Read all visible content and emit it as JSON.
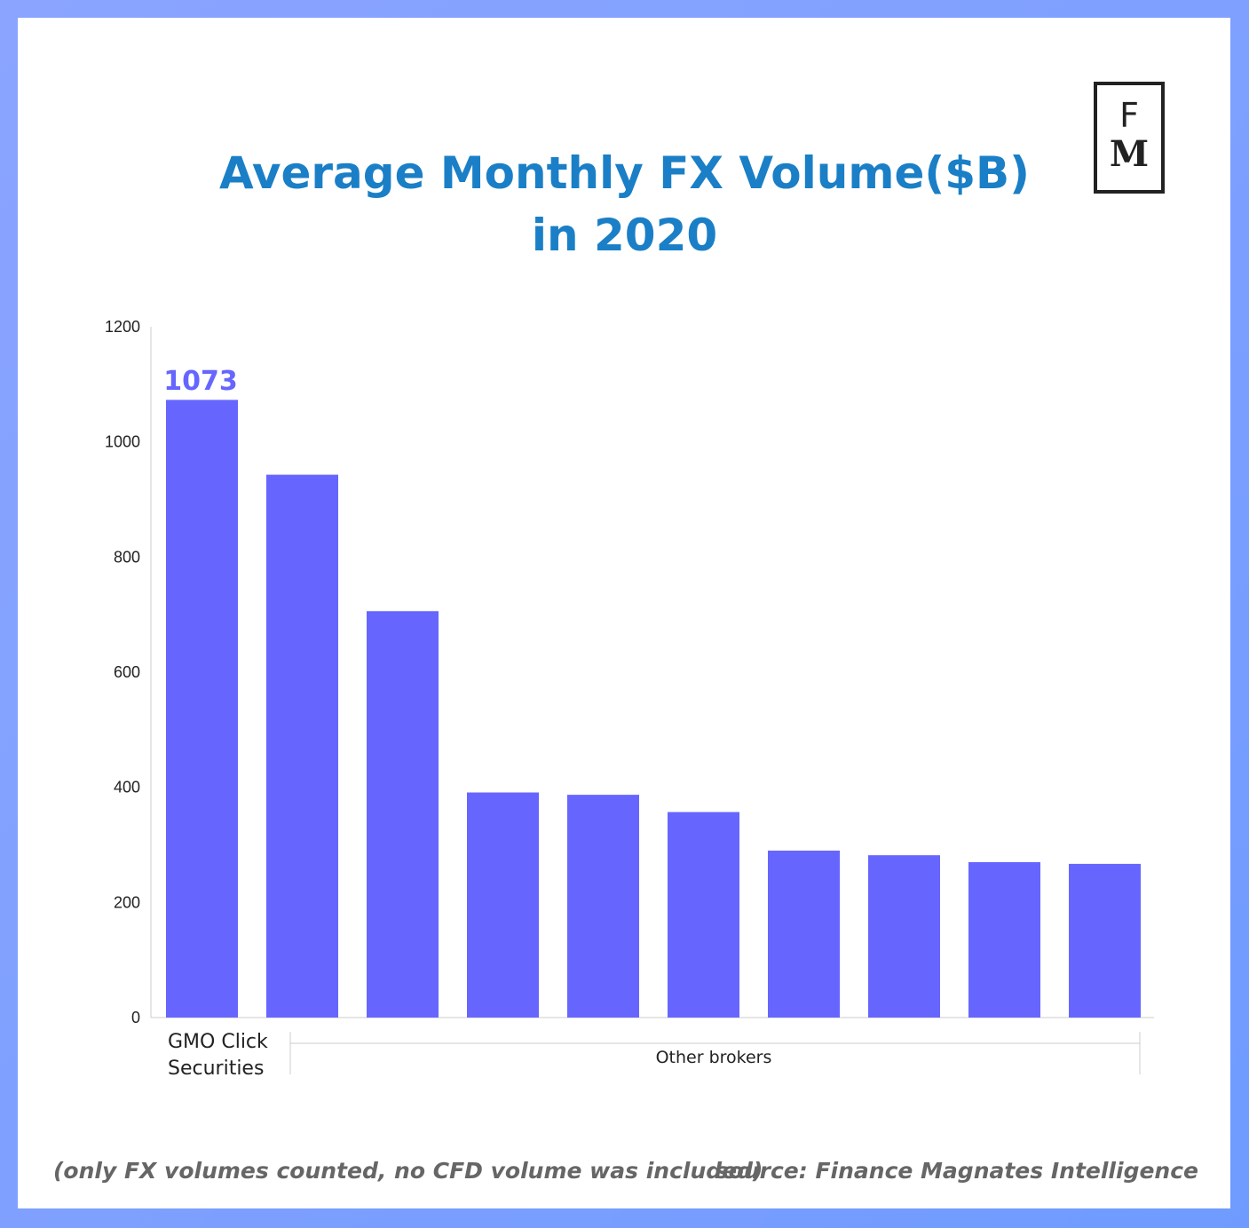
{
  "title": {
    "line1": "Average Monthly FX Volume($B)",
    "line2": "in 2020"
  },
  "logo": {
    "top": "F",
    "bottom": "M"
  },
  "footer": {
    "note": "(only FX volumes counted, no CFD volume was included)",
    "source": "source: Finance Magnates Intelligence"
  },
  "colors": {
    "bar": "#6666ff",
    "title": "#1a7fc6",
    "label": "#6666ff"
  },
  "chart_data": {
    "type": "bar",
    "title": "Average Monthly FX Volume($B) in 2020",
    "ylim": [
      0,
      1200
    ],
    "yticks": [
      0,
      200,
      400,
      600,
      800,
      1000,
      1200
    ],
    "values": [
      1073,
      943,
      706,
      391,
      387,
      357,
      290,
      282,
      270,
      267
    ],
    "value_label": "1073",
    "group_labels": [
      {
        "label": "GMO Click Securities",
        "lines": [
          "GMO Click",
          "Securities"
        ]
      },
      {
        "label": "Other brokers"
      }
    ],
    "grid": false,
    "legend": "none"
  }
}
